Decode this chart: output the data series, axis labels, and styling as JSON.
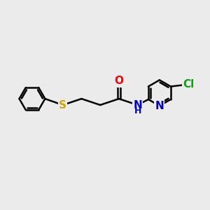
{
  "background_color": "#ebebeb",
  "bond_color": "#000000",
  "bond_width": 1.8,
  "figsize": [
    3.0,
    3.0
  ],
  "dpi": 100,
  "atom_labels": {
    "S": {
      "color": "#ccaa00",
      "fontsize": 11,
      "fontweight": "bold"
    },
    "O": {
      "color": "#ff0000",
      "fontsize": 11,
      "fontweight": "bold"
    },
    "N": {
      "color": "#0000cc",
      "fontsize": 11,
      "fontweight": "bold"
    },
    "H": {
      "color": "#0000cc",
      "fontsize": 9,
      "fontweight": "bold"
    },
    "Cl": {
      "color": "#00aa00",
      "fontsize": 11,
      "fontweight": "bold"
    }
  }
}
